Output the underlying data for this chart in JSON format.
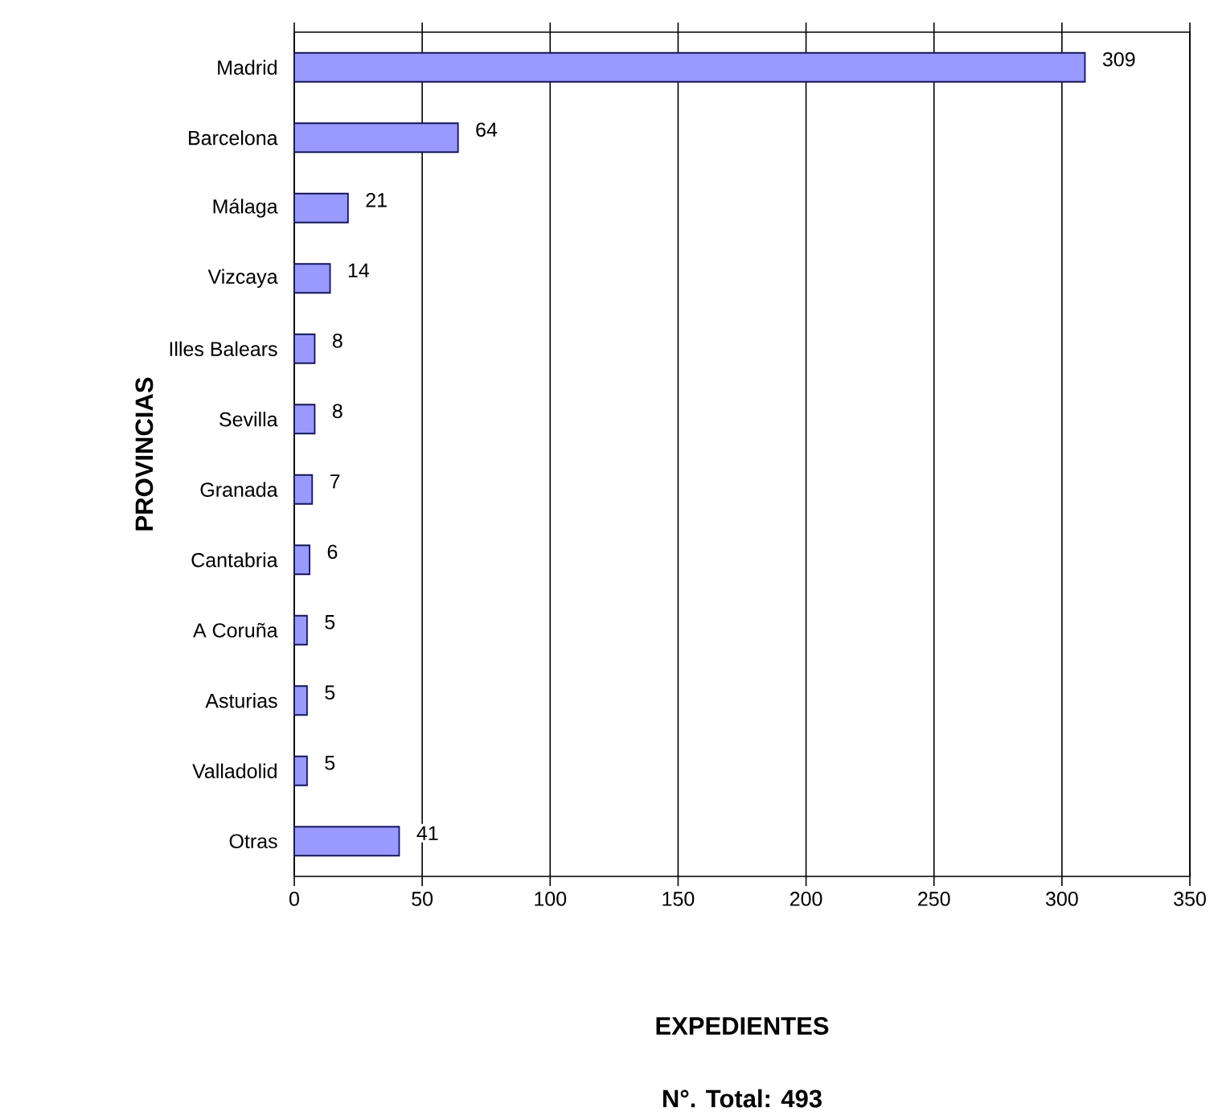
{
  "chart_data": {
    "type": "bar",
    "orientation": "horizontal",
    "categories": [
      "Madrid",
      "Barcelona",
      "Málaga",
      "Vizcaya",
      "Illes Balears",
      "Sevilla",
      "Granada",
      "Cantabria",
      "A Coruña",
      "Asturias",
      "Valladolid",
      "Otras"
    ],
    "values": [
      309,
      64,
      21,
      14,
      8,
      8,
      7,
      6,
      5,
      5,
      5,
      41
    ],
    "color": "#9999ff",
    "xlim": [
      0,
      350
    ],
    "xticks": [
      0,
      50,
      100,
      150,
      200,
      250,
      300,
      350
    ],
    "xlabel": "EXPEDIENTES",
    "ylabel": "PROVINCIAS",
    "annotations": [
      "N°. Total: 493"
    ],
    "grid": "x",
    "data_labels": true
  }
}
